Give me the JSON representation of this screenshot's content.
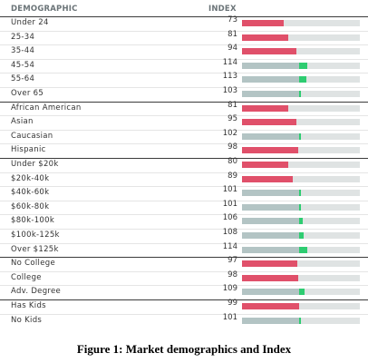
{
  "header": {
    "demographic_label": "DEMOGRAPHIC",
    "index_label": "INDEX"
  },
  "caption": "Figure 1: Market demographics and Index",
  "colors": {
    "below": "#e0506a",
    "above": "#2ecc71",
    "base": "#b3c4c4",
    "track": "#dfe3e3",
    "divider": "#3b3b3b",
    "rule": "#e5e5e5"
  },
  "chart_data": {
    "type": "bar",
    "baseline": 100,
    "groups": [
      {
        "rows": [
          {
            "label": "Under 24",
            "index": 73
          },
          {
            "label": "25-34",
            "index": 81
          },
          {
            "label": "35-44",
            "index": 94
          },
          {
            "label": "45-54",
            "index": 114
          },
          {
            "label": "55-64",
            "index": 113
          },
          {
            "label": "Over 65",
            "index": 103
          }
        ]
      },
      {
        "rows": [
          {
            "label": "African American",
            "index": 81
          },
          {
            "label": "Asian",
            "index": 95
          },
          {
            "label": "Caucasian",
            "index": 102
          },
          {
            "label": "Hispanic",
            "index": 98
          }
        ]
      },
      {
        "rows": [
          {
            "label": "Under $20k",
            "index": 80
          },
          {
            "label": "$20k-40k",
            "index": 89
          },
          {
            "label": "$40k-60k",
            "index": 101
          },
          {
            "label": "$60k-80k",
            "index": 101
          },
          {
            "label": "$80k-100k",
            "index": 106
          },
          {
            "label": "$100k-125k",
            "index": 108
          },
          {
            "label": "Over $125k",
            "index": 114
          }
        ]
      },
      {
        "rows": [
          {
            "label": "No College",
            "index": 97
          },
          {
            "label": "College",
            "index": 98
          },
          {
            "label": "Adv. Degree",
            "index": 109
          }
        ]
      },
      {
        "rows": [
          {
            "label": "Has Kids",
            "index": 99
          },
          {
            "label": "No Kids",
            "index": 101
          }
        ]
      }
    ]
  }
}
